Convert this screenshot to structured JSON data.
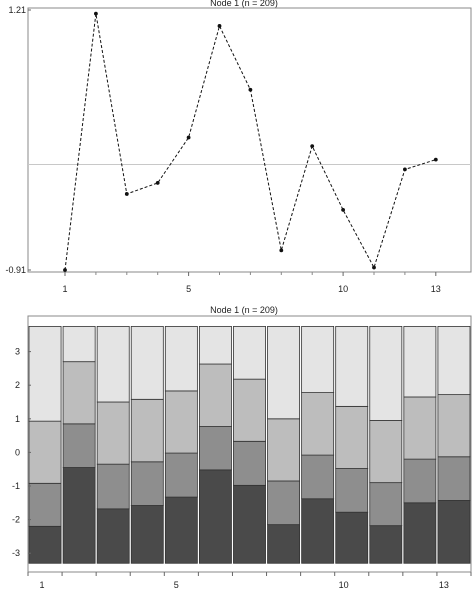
{
  "chart_data": [
    {
      "type": "line",
      "title": "Node 1 (n = 209)",
      "x": [
        1,
        2,
        3,
        4,
        5,
        6,
        7,
        8,
        9,
        10,
        11,
        12,
        13
      ],
      "y": [
        -0.91,
        1.18,
        -0.29,
        -0.2,
        0.17,
        1.08,
        0.56,
        -0.75,
        0.1,
        -0.42,
        -0.89,
        -0.09,
        -0.01
      ],
      "ylim": [
        -0.91,
        1.21
      ],
      "y_tick_labels": [
        "-0.91",
        "1.21"
      ],
      "x_tick_labels": [
        "1",
        "5",
        "10",
        "13"
      ],
      "reference_line": -0.05,
      "line_style": "dashed",
      "grid": false
    },
    {
      "type": "bar",
      "stacked": true,
      "title": "Node 1 (n = 209)",
      "categories": [
        "1",
        "2",
        "3",
        "4",
        "5",
        "6",
        "7",
        "8",
        "9",
        "10",
        "11",
        "12",
        "13"
      ],
      "bins": [
        {
          "bottom": -3.3,
          "b1": -2.2,
          "b2": -0.92,
          "b3": 0.93,
          "top": 3.75
        },
        {
          "bottom": -3.3,
          "b1": -0.45,
          "b2": 0.85,
          "b3": 2.7,
          "top": 3.75
        },
        {
          "bottom": -3.3,
          "b1": -1.68,
          "b2": -0.35,
          "b3": 1.5,
          "top": 3.75
        },
        {
          "bottom": -3.3,
          "b1": -1.58,
          "b2": -0.28,
          "b3": 1.58,
          "top": 3.75
        },
        {
          "bottom": -3.3,
          "b1": -1.33,
          "b2": -0.02,
          "b3": 1.83,
          "top": 3.75
        },
        {
          "bottom": -3.3,
          "b1": -0.52,
          "b2": 0.77,
          "b3": 2.63,
          "top": 3.75
        },
        {
          "bottom": -3.3,
          "b1": -0.98,
          "b2": 0.33,
          "b3": 2.18,
          "top": 3.75
        },
        {
          "bottom": -3.3,
          "b1": -2.15,
          "b2": -0.85,
          "b3": 1.0,
          "top": 3.75
        },
        {
          "bottom": -3.3,
          "b1": -1.38,
          "b2": -0.08,
          "b3": 1.78,
          "top": 3.75
        },
        {
          "bottom": -3.3,
          "b1": -1.78,
          "b2": -0.48,
          "b3": 1.37,
          "top": 3.75
        },
        {
          "bottom": -3.3,
          "b1": -2.18,
          "b2": -0.9,
          "b3": 0.95,
          "top": 3.75
        },
        {
          "bottom": -3.3,
          "b1": -1.5,
          "b2": -0.2,
          "b3": 1.65,
          "top": 3.75
        },
        {
          "bottom": -3.3,
          "b1": -1.43,
          "b2": -0.13,
          "b3": 1.72,
          "top": 3.75
        }
      ],
      "ylim": [
        -3.5,
        4.0
      ],
      "y_tick_labels": [
        "-3",
        "-2",
        "-1",
        "0",
        "1",
        "2",
        "3"
      ],
      "x_tick_labels": [
        "1",
        "5",
        "10",
        "13"
      ],
      "band_colors": [
        "#4a4a4a",
        "#8e8e8e",
        "#bdbdbd",
        "#e4e4e4"
      ],
      "grid": false
    }
  ]
}
